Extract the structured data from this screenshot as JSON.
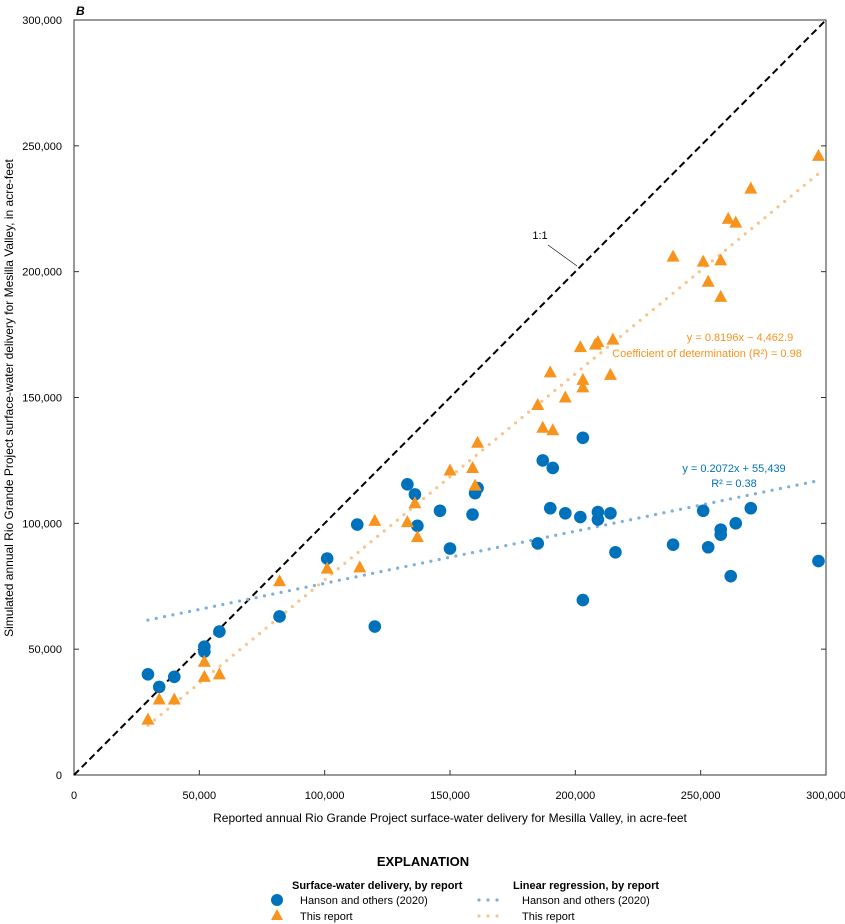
{
  "chart_data": {
    "type": "scatter",
    "panel_label": "B",
    "xlabel": "Reported annual Rio Grande Project surface-water delivery for Mesilla Valley, in acre-feet",
    "ylabel": "Simulated annual Rio Grande Project surface-water delivery for Mesilla Valley, in acre-feet",
    "xlim": [
      0,
      300000
    ],
    "ylim": [
      0,
      300000
    ],
    "xticks": [
      0,
      50000,
      100000,
      150000,
      200000,
      250000,
      300000
    ],
    "yticks": [
      0,
      50000,
      100000,
      150000,
      200000,
      250000,
      300000
    ],
    "xtick_labels": [
      "0",
      "50,000",
      "100,000",
      "150,000",
      "200,000",
      "250,000",
      "300,000"
    ],
    "ytick_labels": [
      "0",
      "50,000",
      "100,000",
      "150,000",
      "200,000",
      "250,000",
      "300,000"
    ],
    "grid": false,
    "one_to_one_label": "1:1",
    "series": [
      {
        "name": "Hanson and others (2020)",
        "marker": "circle",
        "color": "#0072BC",
        "points": [
          [
            29500,
            40000
          ],
          [
            34000,
            35000
          ],
          [
            40000,
            39000
          ],
          [
            52000,
            51000
          ],
          [
            52000,
            49000
          ],
          [
            58000,
            57000
          ],
          [
            82000,
            63000
          ],
          [
            101000,
            86000
          ],
          [
            113000,
            99500
          ],
          [
            120000,
            59000
          ],
          [
            133000,
            115500
          ],
          [
            136000,
            111500
          ],
          [
            137000,
            99000
          ],
          [
            146000,
            105000
          ],
          [
            150000,
            90000
          ],
          [
            159000,
            103500
          ],
          [
            160000,
            112000
          ],
          [
            161000,
            114000
          ],
          [
            185000,
            92000
          ],
          [
            187000,
            125000
          ],
          [
            190000,
            106000
          ],
          [
            191000,
            122000
          ],
          [
            196000,
            104000
          ],
          [
            202000,
            102500
          ],
          [
            203000,
            134000
          ],
          [
            203000,
            69500
          ],
          [
            209000,
            101500
          ],
          [
            209000,
            104500
          ],
          [
            214000,
            104000
          ],
          [
            216000,
            88500
          ],
          [
            239000,
            91500
          ],
          [
            251000,
            105000
          ],
          [
            253000,
            90500
          ],
          [
            258000,
            97500
          ],
          [
            258000,
            95500
          ],
          [
            262000,
            79000
          ],
          [
            264000,
            100000
          ],
          [
            270000,
            106000
          ],
          [
            297000,
            85000
          ]
        ]
      },
      {
        "name": "This report",
        "marker": "triangle",
        "color": "#F7941D",
        "points": [
          [
            29500,
            22000
          ],
          [
            34000,
            30000
          ],
          [
            40000,
            30000
          ],
          [
            52000,
            39000
          ],
          [
            52000,
            45000
          ],
          [
            58000,
            40000
          ],
          [
            82000,
            77000
          ],
          [
            101000,
            82000
          ],
          [
            114000,
            82500
          ],
          [
            120000,
            101000
          ],
          [
            133000,
            100500
          ],
          [
            136000,
            108000
          ],
          [
            137000,
            94500
          ],
          [
            150000,
            121000
          ],
          [
            159000,
            122000
          ],
          [
            160000,
            115000
          ],
          [
            161000,
            132000
          ],
          [
            185000,
            147000
          ],
          [
            187000,
            138000
          ],
          [
            190000,
            160000
          ],
          [
            191000,
            137000
          ],
          [
            196000,
            150000
          ],
          [
            202000,
            170000
          ],
          [
            203000,
            157000
          ],
          [
            203000,
            154000
          ],
          [
            208000,
            171000
          ],
          [
            209000,
            172000
          ],
          [
            214000,
            159000
          ],
          [
            215000,
            173000
          ],
          [
            239000,
            206000
          ],
          [
            251000,
            204000
          ],
          [
            253000,
            196000
          ],
          [
            258000,
            204500
          ],
          [
            258000,
            190000
          ],
          [
            261000,
            221000
          ],
          [
            264000,
            219500
          ],
          [
            270000,
            233000
          ],
          [
            297000,
            246000
          ]
        ]
      }
    ],
    "regressions": [
      {
        "name": "Hanson and others (2020)",
        "slope": 0.2072,
        "intercept": 55439,
        "x_range": [
          29500,
          297000
        ],
        "color": "#7FAFD9",
        "label_color": "#0072BC",
        "equation": "y = 0.2072x + 55,439",
        "r2_label": "R² = 0.38"
      },
      {
        "name": "This report",
        "slope": 0.8196,
        "intercept": -4462.9,
        "x_range": [
          29500,
          297000
        ],
        "color": "#FBC38A",
        "label_color": "#F7941D",
        "equation": "y = 0.8196x − 4,462.9",
        "r2_label": "Coefficient of determination (R²) = 0.98"
      }
    ],
    "legend": {
      "placement": "bottom",
      "title": "EXPLANATION",
      "markers_heading": "Surface-water delivery, by report",
      "lines_heading": "Linear regression, by report",
      "entries": [
        "Hanson and others (2020)",
        "This report"
      ]
    }
  }
}
